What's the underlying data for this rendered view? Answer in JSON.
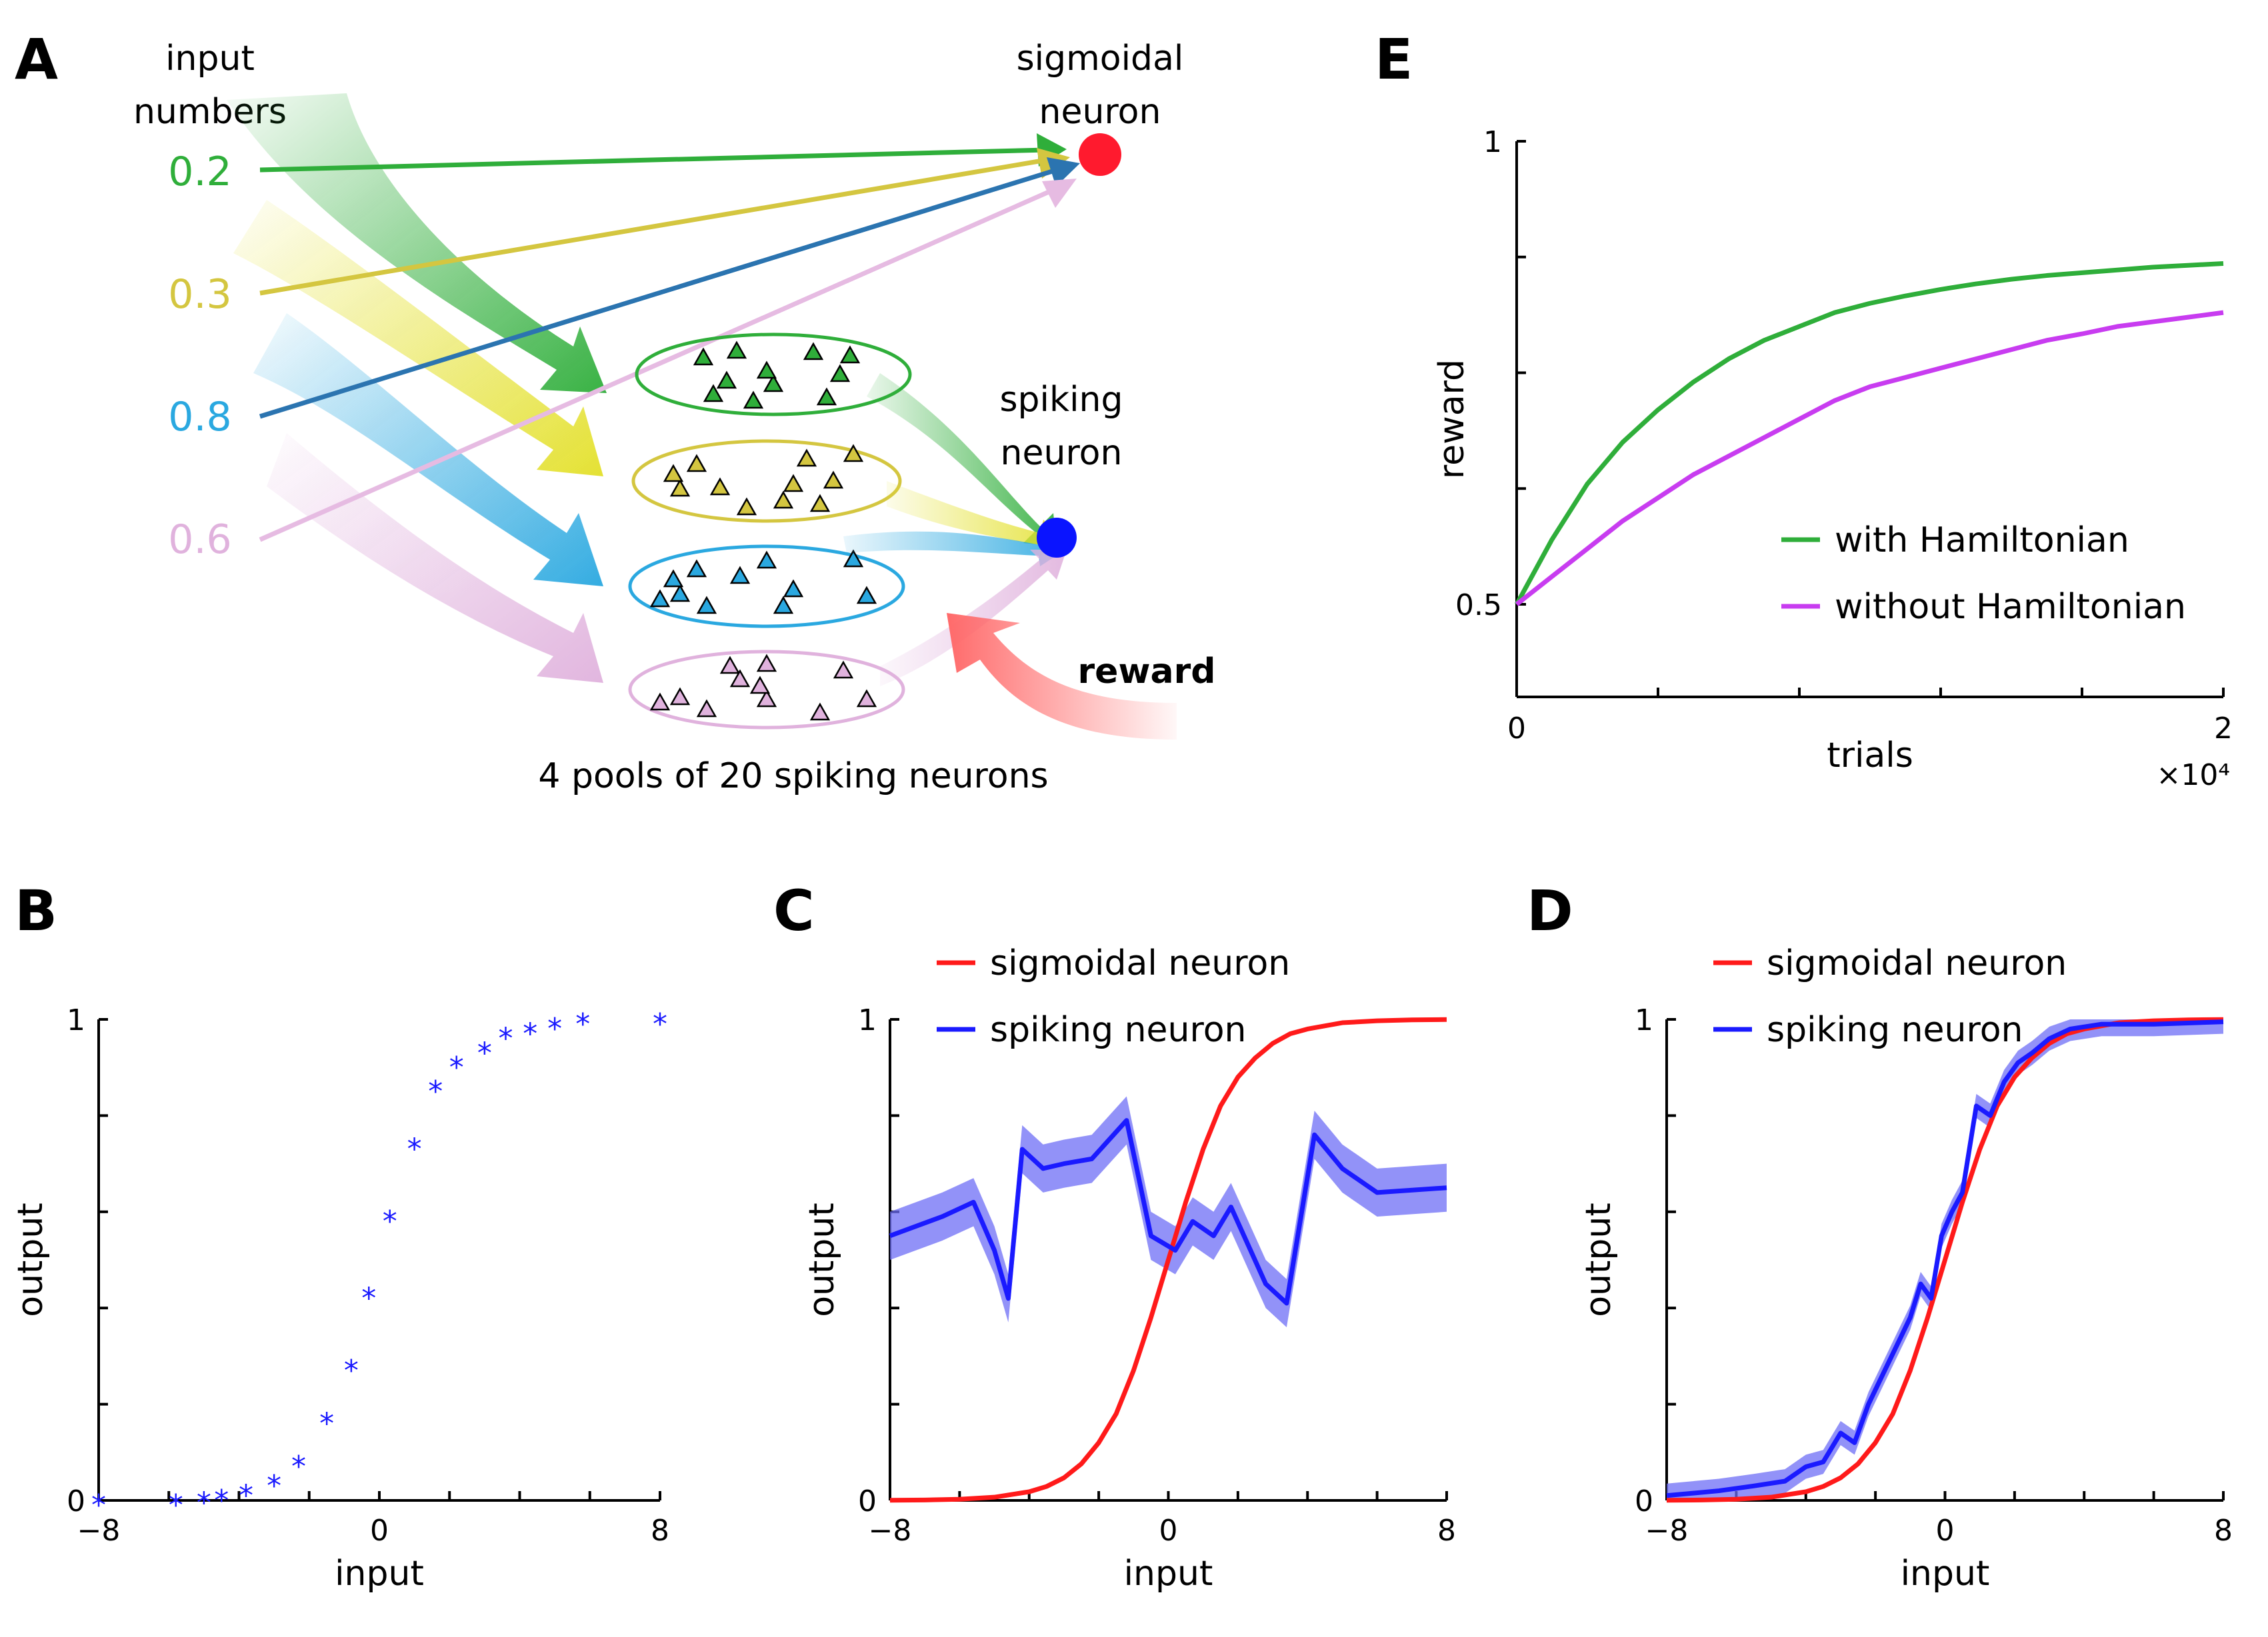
{
  "panelA": {
    "letter": "A",
    "input_label_1": "input",
    "input_label_2": "numbers",
    "sig_label_1": "sigmoidal",
    "sig_label_2": "neuron",
    "spk_label_1": "spiking",
    "spk_label_2": "neuron",
    "inputs": [
      {
        "value": "0.2",
        "color": "#2fae3a"
      },
      {
        "value": "0.3",
        "color": "#d4c640"
      },
      {
        "value": "0.8",
        "color": "#2aa8e0"
      },
      {
        "value": "0.6",
        "color": "#e0b2dd"
      }
    ],
    "pool_colors": [
      "#2fae3a",
      "#d4c640",
      "#2aa8e0",
      "#e0b2dd"
    ],
    "sigmoid_color": "#ff1a2e",
    "spiking_color": "#0a14ff",
    "reward": "reward",
    "pools_caption": "4 pools of 20 spiking neurons"
  },
  "panelB": {
    "letter": "B"
  },
  "panelC": {
    "letter": "C"
  },
  "panelD": {
    "letter": "D"
  },
  "panelE": {
    "letter": "E"
  },
  "chart_data": [
    {
      "id": "B",
      "type": "scatter",
      "xlabel": "input",
      "ylabel": "output",
      "xlim": [
        -8,
        8
      ],
      "ylim": [
        0,
        1
      ],
      "xticks": [
        "−8",
        "0",
        "8"
      ],
      "yticks": [
        "0",
        "1"
      ],
      "marker": "*",
      "color": "#1a1aff",
      "x": [
        -8,
        -5.8,
        -5,
        -4.5,
        -3.8,
        -3,
        -2.3,
        -1.5,
        -0.8,
        -0.3,
        0.3,
        1,
        1.6,
        2.2,
        3,
        3.6,
        4.3,
        5,
        5.8,
        8
      ],
      "y": [
        0.0,
        0.0,
        0.005,
        0.01,
        0.02,
        0.04,
        0.08,
        0.17,
        0.28,
        0.43,
        0.59,
        0.74,
        0.86,
        0.91,
        0.94,
        0.97,
        0.98,
        0.99,
        1.0,
        1.0
      ]
    },
    {
      "id": "C",
      "type": "line",
      "xlabel": "input",
      "ylabel": "output",
      "xlim": [
        -8,
        8
      ],
      "ylim": [
        0,
        1
      ],
      "xticks": [
        "−8",
        "0",
        "8"
      ],
      "yticks": [
        "0",
        "1"
      ],
      "legend": "top-left",
      "series": [
        {
          "name": "sigmoidal neuron",
          "color": "#ff1a1a",
          "x": [
            -8,
            -7,
            -6,
            -5,
            -4,
            -3.5,
            -3,
            -2.5,
            -2,
            -1.5,
            -1,
            -0.5,
            0,
            0.5,
            1,
            1.5,
            2,
            2.5,
            3,
            3.5,
            4,
            5,
            6,
            7,
            8
          ],
          "y": [
            0.0003,
            0.0009,
            0.0025,
            0.0067,
            0.018,
            0.029,
            0.047,
            0.076,
            0.12,
            0.18,
            0.27,
            0.38,
            0.5,
            0.62,
            0.73,
            0.82,
            0.88,
            0.92,
            0.95,
            0.97,
            0.98,
            0.993,
            0.997,
            0.999,
            0.9997
          ]
        },
        {
          "name": "spiking neuron",
          "color": "#1a1aff",
          "band_color": "#6e6ef5",
          "x": [
            -8,
            -6.5,
            -5.6,
            -5,
            -4.6,
            -4.2,
            -3.6,
            -3,
            -2.2,
            -1.2,
            -0.5,
            0.2,
            0.7,
            1.3,
            1.8,
            2.3,
            2.8,
            3.4,
            4.2,
            5,
            6,
            8
          ],
          "y": [
            0.55,
            0.59,
            0.62,
            0.52,
            0.42,
            0.73,
            0.69,
            0.7,
            0.71,
            0.79,
            0.55,
            0.52,
            0.58,
            0.55,
            0.61,
            0.53,
            0.45,
            0.41,
            0.76,
            0.69,
            0.64,
            0.65
          ],
          "band": 0.05
        }
      ]
    },
    {
      "id": "D",
      "type": "line",
      "xlabel": "input",
      "ylabel": "output",
      "xlim": [
        -8,
        8
      ],
      "ylim": [
        0,
        1
      ],
      "xticks": [
        "−8",
        "0",
        "8"
      ],
      "yticks": [
        "0",
        "1"
      ],
      "legend": "top-left",
      "series": [
        {
          "name": "sigmoidal neuron",
          "color": "#ff1a1a",
          "x": [
            -8,
            -7,
            -6,
            -5,
            -4,
            -3.5,
            -3,
            -2.5,
            -2,
            -1.5,
            -1,
            -0.5,
            0,
            0.5,
            1,
            1.5,
            2,
            2.5,
            3,
            3.5,
            4,
            5,
            6,
            7,
            8
          ],
          "y": [
            0.0003,
            0.0009,
            0.0025,
            0.0067,
            0.018,
            0.029,
            0.047,
            0.076,
            0.12,
            0.18,
            0.27,
            0.38,
            0.5,
            0.62,
            0.73,
            0.82,
            0.88,
            0.92,
            0.95,
            0.97,
            0.98,
            0.993,
            0.997,
            0.999,
            0.9997
          ]
        },
        {
          "name": "spiking neuron",
          "color": "#1a1aff",
          "band_color": "#6e6ef5",
          "x": [
            -8,
            -6.5,
            -5.5,
            -4.6,
            -4.0,
            -3.5,
            -3.0,
            -2.6,
            -2.2,
            -1.8,
            -1.4,
            -1.0,
            -0.7,
            -0.4,
            -0.1,
            0.2,
            0.5,
            0.9,
            1.3,
            1.7,
            2.1,
            2.5,
            3.0,
            3.6,
            4.5,
            6,
            8
          ],
          "y": [
            0.01,
            0.02,
            0.03,
            0.04,
            0.07,
            0.08,
            0.14,
            0.12,
            0.2,
            0.26,
            0.32,
            0.38,
            0.45,
            0.42,
            0.55,
            0.6,
            0.64,
            0.82,
            0.8,
            0.87,
            0.91,
            0.93,
            0.96,
            0.98,
            0.99,
            0.99,
            0.995
          ],
          "band": 0.025
        }
      ]
    },
    {
      "id": "E",
      "type": "line",
      "xlabel": "trials",
      "ylabel": "reward",
      "xlim": [
        0,
        20000
      ],
      "ylim": [
        0.4,
        1
      ],
      "xticks": [
        "0",
        "2"
      ],
      "yticks": [
        "0.5",
        "1"
      ],
      "x_multiplier": "×10⁴",
      "legend": "bottom-right",
      "series": [
        {
          "name": "with Hamiltonian",
          "color": "#2fae3a",
          "x": [
            0,
            1000,
            2000,
            3000,
            4000,
            5000,
            6000,
            7000,
            8000,
            9000,
            10000,
            11000,
            12000,
            13000,
            14000,
            15000,
            16000,
            17000,
            18000,
            19000,
            20000
          ],
          "y": [
            0.5,
            0.57,
            0.63,
            0.675,
            0.71,
            0.74,
            0.765,
            0.785,
            0.8,
            0.815,
            0.825,
            0.833,
            0.84,
            0.846,
            0.851,
            0.855,
            0.858,
            0.861,
            0.864,
            0.866,
            0.868
          ]
        },
        {
          "name": "without Hamiltonian",
          "color": "#c83cf0",
          "x": [
            0,
            1000,
            2000,
            3000,
            4000,
            5000,
            6000,
            7000,
            8000,
            9000,
            10000,
            11000,
            12000,
            13000,
            14000,
            15000,
            16000,
            17000,
            18000,
            19000,
            20000
          ],
          "y": [
            0.5,
            0.53,
            0.56,
            0.59,
            0.615,
            0.64,
            0.66,
            0.68,
            0.7,
            0.72,
            0.735,
            0.745,
            0.755,
            0.765,
            0.775,
            0.785,
            0.792,
            0.8,
            0.805,
            0.81,
            0.815
          ]
        }
      ]
    }
  ]
}
